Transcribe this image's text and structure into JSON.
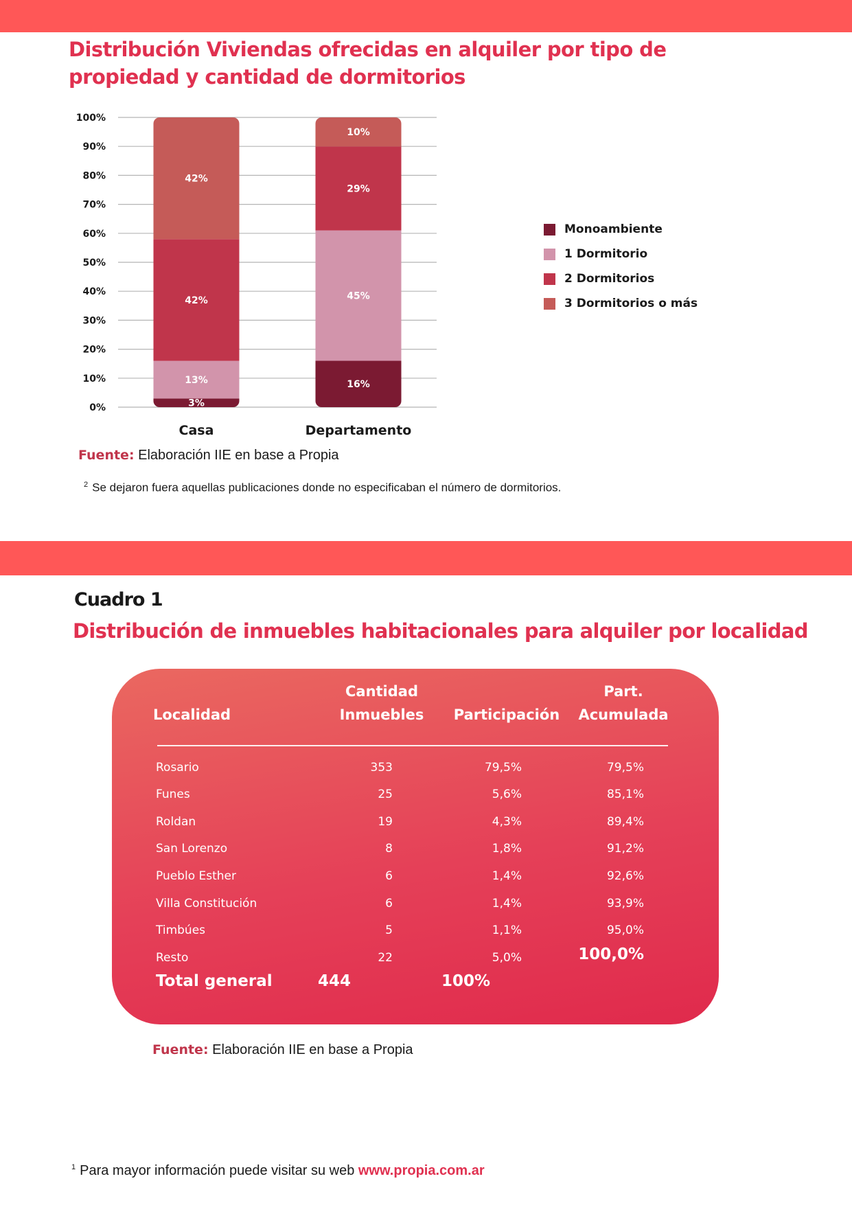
{
  "chart_title": "Distribución Viviendas ofrecidas en alquiler por tipo de propiedad y cantidad de dormitorios",
  "chart_data": {
    "type": "bar",
    "stacked": true,
    "categories": [
      "Casa",
      "Departamento"
    ],
    "series": [
      {
        "name": "Monoambiente",
        "color": "#7b1a32",
        "values": [
          3,
          16
        ]
      },
      {
        "name": "1 Dormitorio",
        "color": "#d294ab",
        "values": [
          13,
          45
        ]
      },
      {
        "name": "2 Dormitorios",
        "color": "#c0354b",
        "values": [
          42,
          29
        ]
      },
      {
        "name": "3 Dormitorios o más",
        "color": "#c55b58",
        "values": [
          42,
          10
        ]
      }
    ],
    "data_labels": [
      [
        "3%",
        "13%",
        "42%",
        "42%"
      ],
      [
        "16%",
        "45%",
        "29%",
        "10%"
      ]
    ],
    "y_ticks": [
      "0%",
      "10%",
      "20%",
      "30%",
      "40%",
      "50%",
      "60%",
      "70%",
      "80%",
      "90%",
      "100%"
    ],
    "ylim": [
      0,
      100
    ],
    "grid": true,
    "legend_position": "right"
  },
  "chart_source": {
    "label": "Fuente:",
    "text": "Elaboración IIE en base a Propia"
  },
  "footnote_2": {
    "mark": "2",
    "text": "Se dejaron fuera aquellas publicaciones donde no especificaban el número de dormitorios."
  },
  "cuadro": {
    "label": "Cuadro 1",
    "title": "Distribución de inmuebles habitacionales para alquiler por localidad",
    "headers": {
      "localidad": "Localidad",
      "cantidad_1": "Cantidad",
      "cantidad_2": "Inmuebles",
      "participacion": "Participación",
      "acumulada_1": "Part.",
      "acumulada_2": "Acumulada"
    },
    "rows": [
      {
        "localidad": "Rosario",
        "cantidad": "353",
        "participacion": "79,5%",
        "acumulada": "79,5%"
      },
      {
        "localidad": "Funes",
        "cantidad": "25",
        "participacion": "5,6%",
        "acumulada": "85,1%"
      },
      {
        "localidad": "Roldan",
        "cantidad": "19",
        "participacion": "4,3%",
        "acumulada": "89,4%"
      },
      {
        "localidad": "San Lorenzo",
        "cantidad": "8",
        "participacion": "1,8%",
        "acumulada": "91,2%"
      },
      {
        "localidad": "Pueblo Esther",
        "cantidad": "6",
        "participacion": "1,4%",
        "acumulada": "92,6%"
      },
      {
        "localidad": "Villa Constitución",
        "cantidad": "6",
        "participacion": "1,4%",
        "acumulada": "93,9%"
      },
      {
        "localidad": "Timbúes",
        "cantidad": "5",
        "participacion": "1,1%",
        "acumulada": "95,0%"
      },
      {
        "localidad": "Resto",
        "cantidad": "22",
        "participacion": "5,0%",
        "acumulada": "100,0%"
      }
    ],
    "total": {
      "label": "Total  general",
      "cantidad": "444",
      "participacion": "100%"
    }
  },
  "table_source": {
    "label": "Fuente:",
    "text": "Elaboración IIE en base a Propia"
  },
  "footnote_1": {
    "mark": "1",
    "text": "Para mayor información puede visitar su web",
    "link": "www.propia.com.ar"
  }
}
